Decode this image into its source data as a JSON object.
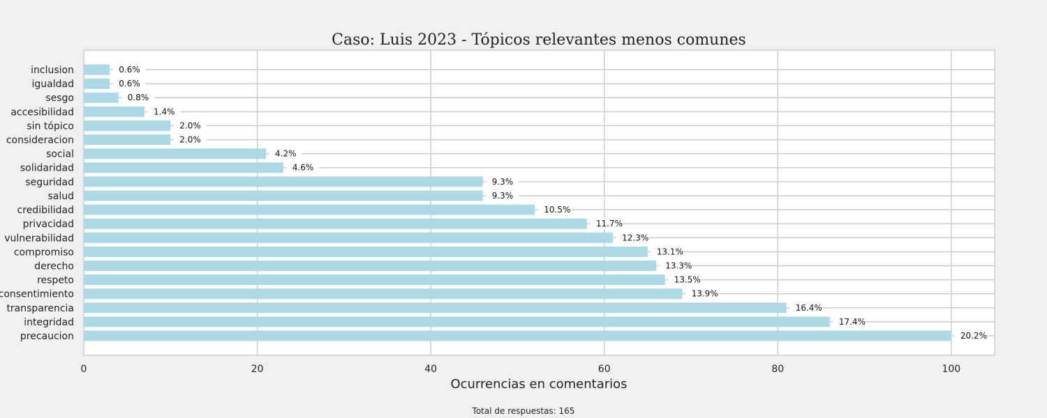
{
  "chart_data": {
    "type": "bar",
    "orientation": "horizontal",
    "title": "Caso: Luis 2023 - Tópicos relevantes menos comunes",
    "xlabel": "Ocurrencias en comentarios",
    "ylabel": "",
    "xlim": [
      0,
      105
    ],
    "xticks": [
      "0",
      "20",
      "40",
      "60",
      "80",
      "100"
    ],
    "grid": true,
    "categories": [
      "precaucion",
      "integridad",
      "transparencia",
      "consentimiento",
      "respeto",
      "derecho",
      "compromiso",
      "vulnerabilidad",
      "privacidad",
      "credibilidad",
      "salud",
      "seguridad",
      "solidaridad",
      "social",
      "consideracion",
      "sin tópico",
      "accesibilidad",
      "sesgo",
      "igualdad",
      "inclusion"
    ],
    "values": [
      100,
      86,
      81,
      69,
      67,
      66,
      65,
      61,
      58,
      52,
      46,
      46,
      23,
      21,
      10,
      10,
      7,
      4,
      3,
      3
    ],
    "data_labels": [
      "20.2%",
      "17.4%",
      "16.4%",
      "13.9%",
      "13.5%",
      "13.3%",
      "13.1%",
      "12.3%",
      "11.7%",
      "10.5%",
      "9.3%",
      "9.3%",
      "4.6%",
      "4.2%",
      "2.0%",
      "2.0%",
      "1.4%",
      "0.8%",
      "0.6%",
      "0.6%"
    ],
    "bar_color": "#add8e6",
    "footnote": "Total de respuestas: 165"
  }
}
